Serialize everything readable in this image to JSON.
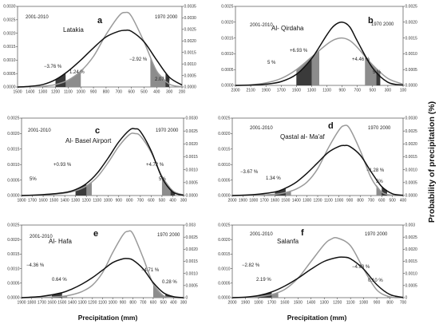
{
  "figure": {
    "x_axis_title": "Precipitation (mm)",
    "y_axis_title": "Probability of precipitation (%)",
    "period_recent": "2001-2010",
    "period_base": "1970 2000"
  },
  "colors": {
    "curve_2001_2010": "#111111",
    "curve_1970_2000": "#9a9a9a",
    "shade_left_dark": "#3a3a3a",
    "shade_left_light": "#8c8c8c",
    "shade_right_dark": "#3a3a3a",
    "shade_right_light": "#8c8c8c"
  },
  "chart_data": [
    {
      "letter": "a",
      "station": "Latakia",
      "type": "line",
      "x_reversed": true,
      "x_ticks": [
        "1500",
        "1400",
        "1300",
        "1200",
        "1100",
        "1000",
        "900",
        "800",
        "700",
        "600",
        "500",
        "400",
        "300",
        "200"
      ],
      "y_ticks_left": [
        "0.0000",
        "0.0005",
        "0.0010",
        "0.0015",
        "0.0020",
        "0.0025",
        "0.0030"
      ],
      "y_ticks_right": [
        "0.0000",
        "0.0005",
        "0.0010",
        "0.0015",
        "0.0020",
        "0.0025",
        "0.0030",
        "0.0035"
      ],
      "xlim": [
        1500,
        200
      ],
      "ylim": [
        0,
        0.0033
      ],
      "annotations": [
        "−3.76 %",
        "1.24 %",
        "−2.92 %",
        "2.07 %"
      ],
      "series": [
        {
          "name": "2001-2010",
          "values": [
            [
              1500,
              0.0
            ],
            [
              1400,
              3e-05
            ],
            [
              1300,
              0.0001
            ],
            [
              1200,
              0.0003
            ],
            [
              1100,
              0.00065
            ],
            [
              1000,
              0.0011
            ],
            [
              900,
              0.0016
            ],
            [
              800,
              0.00205
            ],
            [
              700,
              0.00228
            ],
            [
              650,
              0.00232
            ],
            [
              600,
              0.00228
            ],
            [
              500,
              0.00185
            ],
            [
              400,
              0.0011
            ],
            [
              300,
              0.0004
            ],
            [
              200,
              8e-05
            ]
          ]
        },
        {
          "name": "1970 2000",
          "values": [
            [
              1500,
              0.0
            ],
            [
              1400,
              1e-05
            ],
            [
              1300,
              3e-05
            ],
            [
              1200,
              0.0001
            ],
            [
              1100,
              0.00028
            ],
            [
              1000,
              0.00065
            ],
            [
              900,
              0.00125
            ],
            [
              800,
              0.00215
            ],
            [
              700,
              0.0029
            ],
            [
              650,
              0.00305
            ],
            [
              600,
              0.0029
            ],
            [
              500,
              0.00185
            ],
            [
              400,
              0.00065
            ],
            [
              300,
              0.00012
            ],
            [
              200,
              1e-05
            ]
          ]
        }
      ]
    },
    {
      "letter": "b",
      "station": "Al- Qirdaha",
      "type": "line",
      "x_reversed": true,
      "x_ticks": [
        "2300",
        "2100",
        "1900",
        "1700",
        "1500",
        "1300",
        "1100",
        "900",
        "700",
        "500",
        "300",
        "100"
      ],
      "y_ticks_left": [
        "0.0000",
        "0.0005",
        "0.0010",
        "0.0015",
        "0.0020",
        "0.0025"
      ],
      "y_ticks_right": [
        "0.0000",
        "0.0005",
        "0.0010",
        "0.0015",
        "0.0020",
        "0.0025"
      ],
      "xlim": [
        2300,
        100
      ],
      "ylim": [
        0,
        0.0025
      ],
      "annotations": [
        "5 %",
        "+6.93 %",
        "+4.46 %",
        "5 %"
      ],
      "series": [
        {
          "name": "2001-2010",
          "values": [
            [
              2300,
              0.0
            ],
            [
              2100,
              1e-05
            ],
            [
              1900,
              4e-05
            ],
            [
              1700,
              0.00012
            ],
            [
              1500,
              0.00035
            ],
            [
              1300,
              0.00085
            ],
            [
              1100,
              0.0016
            ],
            [
              1000,
              0.0019
            ],
            [
              900,
              0.002
            ],
            [
              800,
              0.00185
            ],
            [
              700,
              0.0014
            ],
            [
              500,
              0.00055
            ],
            [
              300,
              0.0001
            ],
            [
              100,
              1e-05
            ]
          ]
        },
        {
          "name": "1970 2000",
          "values": [
            [
              2300,
              0.0
            ],
            [
              2100,
              2e-05
            ],
            [
              1900,
              8e-05
            ],
            [
              1700,
              0.00022
            ],
            [
              1500,
              0.0005
            ],
            [
              1300,
              0.0009
            ],
            [
              1100,
              0.0013
            ],
            [
              1000,
              0.00145
            ],
            [
              900,
              0.0015
            ],
            [
              800,
              0.00142
            ],
            [
              700,
              0.0012
            ],
            [
              500,
              0.00065
            ],
            [
              300,
              0.00022
            ],
            [
              100,
              4e-05
            ]
          ]
        }
      ]
    },
    {
      "letter": "c",
      "station": "Al- Basel Airport",
      "type": "line",
      "x_reversed": true,
      "x_ticks": [
        "1800",
        "1700",
        "1600",
        "1500",
        "1400",
        "1300",
        "1200",
        "1100",
        "1000",
        "900",
        "800",
        "700",
        "600",
        "500",
        "400",
        "300"
      ],
      "y_ticks_left": [
        "0.0000",
        "0.0005",
        "0.0010",
        "0.0015",
        "0.0020",
        "0.0025"
      ],
      "y_ticks_right": [
        "0.0000",
        "0.0005",
        "0.0010",
        "0.0015",
        "0.0020",
        "0.0025",
        "0.0030"
      ],
      "xlim": [
        1800,
        300
      ],
      "ylim": [
        0,
        0.0026
      ],
      "annotations": [
        "+0.93 %",
        "5%",
        "+4.72 %",
        "5%"
      ],
      "series": [
        {
          "name": "2001-2010",
          "values": [
            [
              1800,
              0.0
            ],
            [
              1600,
              3e-05
            ],
            [
              1400,
              0.0001
            ],
            [
              1300,
              0.0002
            ],
            [
              1200,
              0.0004
            ],
            [
              1100,
              0.00075
            ],
            [
              1000,
              0.00125
            ],
            [
              900,
              0.0018
            ],
            [
              800,
              0.0022
            ],
            [
              750,
              0.00224
            ],
            [
              700,
              0.00215
            ],
            [
              600,
              0.0015
            ],
            [
              500,
              0.0006
            ],
            [
              400,
              0.00012
            ],
            [
              300,
              1e-05
            ]
          ]
        },
        {
          "name": "1970 2000",
          "values": [
            [
              1800,
              0.0
            ],
            [
              1600,
              2e-05
            ],
            [
              1400,
              8e-05
            ],
            [
              1300,
              0.00016
            ],
            [
              1200,
              0.00032
            ],
            [
              1100,
              0.00062
            ],
            [
              1000,
              0.0011
            ],
            [
              900,
              0.00165
            ],
            [
              800,
              0.00205
            ],
            [
              750,
              0.00208
            ],
            [
              700,
              0.002
            ],
            [
              600,
              0.00145
            ],
            [
              500,
              0.00065
            ],
            [
              400,
              0.00016
            ],
            [
              300,
              2e-05
            ]
          ]
        }
      ]
    },
    {
      "letter": "d",
      "station": "Qastal al- Ma'af",
      "type": "line",
      "x_reversed": true,
      "x_ticks": [
        "2000",
        "1900",
        "1800",
        "1700",
        "1600",
        "1500",
        "1400",
        "1300",
        "1200",
        "1100",
        "1000",
        "900",
        "800",
        "700",
        "600",
        "500",
        "400"
      ],
      "y_ticks_left": [
        "0.0000",
        "0.0005",
        "0.0010",
        "0.0015",
        "0.0020",
        "0.0025"
      ],
      "y_ticks_right": [
        "0.0000",
        "0.0005",
        "0.0010",
        "0.0015",
        "0.0020",
        "0.0025",
        "0.0030"
      ],
      "xlim": [
        2000,
        400
      ],
      "ylim": [
        0,
        0.0026
      ],
      "annotations": [
        "−3.67 %",
        "1.34 %",
        "−1.28 %",
        "5%"
      ],
      "series": [
        {
          "name": "2001-2010",
          "values": [
            [
              2000,
              0.0
            ],
            [
              1800,
              3e-05
            ],
            [
              1600,
              0.00012
            ],
            [
              1500,
              0.00025
            ],
            [
              1400,
              0.00045
            ],
            [
              1300,
              0.00075
            ],
            [
              1200,
              0.0011
            ],
            [
              1100,
              0.00145
            ],
            [
              1000,
              0.00165
            ],
            [
              950,
              0.00168
            ],
            [
              900,
              0.00165
            ],
            [
              800,
              0.00135
            ],
            [
              700,
              0.0008
            ],
            [
              600,
              0.0003
            ],
            [
              500,
              6e-05
            ],
            [
              400,
              1e-05
            ]
          ]
        },
        {
          "name": "1970 2000",
          "values": [
            [
              2000,
              0.0
            ],
            [
              1800,
              1e-05
            ],
            [
              1600,
              4e-05
            ],
            [
              1500,
              0.0001
            ],
            [
              1400,
              0.00022
            ],
            [
              1300,
              0.00045
            ],
            [
              1200,
              0.0009
            ],
            [
              1100,
              0.0016
            ],
            [
              1000,
              0.0022
            ],
            [
              950,
              0.00235
            ],
            [
              900,
              0.00225
            ],
            [
              800,
              0.0015
            ],
            [
              700,
              0.0006
            ],
            [
              600,
              0.00012
            ],
            [
              500,
              1e-05
            ],
            [
              400,
              0.0
            ]
          ]
        }
      ]
    },
    {
      "letter": "e",
      "station": "Al- Hafa",
      "type": "line",
      "x_reversed": true,
      "x_ticks": [
        "1900",
        "1800",
        "1700",
        "1600",
        "1500",
        "1400",
        "1300",
        "1200",
        "1100",
        "1000",
        "900",
        "800",
        "700",
        "600",
        "500",
        "400",
        "300"
      ],
      "y_ticks_left": [
        "0.0000",
        "0.0005",
        "0.0010",
        "0.0015",
        "0.0020",
        "0.0025"
      ],
      "y_ticks_right": [
        "0",
        "0.0005",
        "0.0010",
        "0.0015",
        "0.0020",
        "0.0025",
        "0.003"
      ],
      "xlim": [
        1900,
        300
      ],
      "ylim": [
        0,
        0.0029
      ],
      "annotations": [
        "−4.36 %",
        "0.64 %",
        "−4.71 %",
        "0.28 %"
      ],
      "series": [
        {
          "name": "2001-2010",
          "values": [
            [
              1900,
              0.0
            ],
            [
              1700,
              5e-05
            ],
            [
              1500,
              0.0002
            ],
            [
              1400,
              0.00035
            ],
            [
              1300,
              0.00055
            ],
            [
              1200,
              0.0008
            ],
            [
              1100,
              0.0011
            ],
            [
              1000,
              0.0014
            ],
            [
              900,
              0.00155
            ],
            [
              850,
              0.00156
            ],
            [
              800,
              0.0015
            ],
            [
              700,
              0.00115
            ],
            [
              600,
              0.0006
            ],
            [
              500,
              0.0002
            ],
            [
              400,
              4e-05
            ],
            [
              300,
              0.0
            ]
          ]
        },
        {
          "name": "1970 2000",
          "values": [
            [
              1900,
              0.0
            ],
            [
              1700,
              1e-05
            ],
            [
              1500,
              5e-05
            ],
            [
              1400,
              0.00012
            ],
            [
              1300,
              0.00025
            ],
            [
              1200,
              0.0005
            ],
            [
              1100,
              0.001
            ],
            [
              1000,
              0.0018
            ],
            [
              900,
              0.0025
            ],
            [
              850,
              0.00265
            ],
            [
              800,
              0.00255
            ],
            [
              700,
              0.0016
            ],
            [
              600,
              0.00055
            ],
            [
              500,
              8e-05
            ],
            [
              400,
              0.0
            ],
            [
              300,
              0.0
            ]
          ]
        }
      ]
    },
    {
      "letter": "f",
      "station": "Salanfa",
      "type": "line",
      "x_reversed": true,
      "x_ticks": [
        "2000",
        "1900",
        "1800",
        "1700",
        "1600",
        "1500",
        "1400",
        "1300",
        "1200",
        "1100",
        "1000",
        "900",
        "800",
        "700"
      ],
      "y_ticks_left": [
        "0.0000",
        "0.0005",
        "0.0010",
        "0.0015",
        "0.0020",
        "0.0025"
      ],
      "y_ticks_right": [
        "0",
        "0.0005",
        "0.0010",
        "0.0015",
        "0.0020",
        "0.0025",
        "0.003"
      ],
      "xlim": [
        2000,
        700
      ],
      "ylim": [
        0,
        0.0028
      ],
      "annotations": [
        "−2.82 %",
        "2.19 %",
        "−4.93 %",
        "0.10 %"
      ],
      "series": [
        {
          "name": "2001-2010",
          "values": [
            [
              2000,
              0.0
            ],
            [
              1900,
              2e-05
            ],
            [
              1800,
              8e-05
            ],
            [
              1700,
              0.00022
            ],
            [
              1600,
              0.00045
            ],
            [
              1500,
              0.00075
            ],
            [
              1400,
              0.0011
            ],
            [
              1300,
              0.0014
            ],
            [
              1200,
              0.00155
            ],
            [
              1150,
              0.00156
            ],
            [
              1100,
              0.0015
            ],
            [
              1000,
              0.0011
            ],
            [
              900,
              0.0005
            ],
            [
              800,
              0.00012
            ],
            [
              700,
              1e-05
            ]
          ]
        },
        {
          "name": "1970 2000",
          "values": [
            [
              2000,
              0.0
            ],
            [
              1900,
              1e-05
            ],
            [
              1800,
              4e-05
            ],
            [
              1700,
              0.00012
            ],
            [
              1600,
              0.00032
            ],
            [
              1500,
              0.00075
            ],
            [
              1400,
              0.0014
            ],
            [
              1300,
              0.00205
            ],
            [
              1250,
              0.00225
            ],
            [
              1200,
              0.0023
            ],
            [
              1100,
              0.002
            ],
            [
              1000,
              0.0011
            ],
            [
              900,
              0.0003
            ],
            [
              800,
              3e-05
            ],
            [
              700,
              0.0
            ]
          ]
        }
      ]
    }
  ]
}
